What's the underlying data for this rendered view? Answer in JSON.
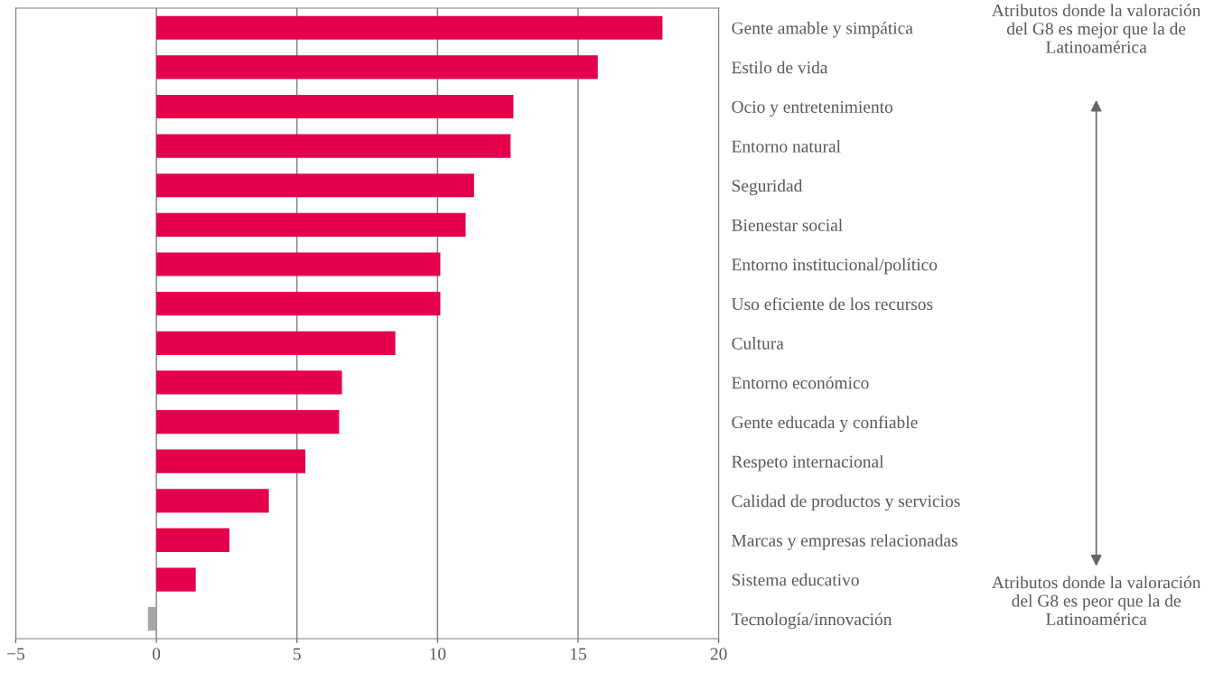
{
  "chart_data": {
    "type": "bar",
    "orientation": "horizontal",
    "categories": [
      "Gente amable y simpática",
      "Estilo de vida",
      "Ocio y entretenimiento",
      "Entorno natural",
      "Seguridad",
      "Bienestar social",
      "Entorno institucional/político",
      "Uso eficiente de los recursos",
      "Cultura",
      "Entorno económico",
      "Gente educada y confiable",
      "Respeto internacional",
      "Calidad de productos y servicios",
      "Marcas y empresas relacionadas",
      "Sistema educativo",
      "Tecnología/innovación"
    ],
    "values": [
      18.0,
      15.7,
      12.7,
      12.6,
      11.3,
      11.0,
      10.1,
      10.1,
      8.5,
      6.6,
      6.5,
      5.3,
      4.0,
      2.6,
      1.4,
      -0.3
    ],
    "colors": [
      "#e4004b",
      "#e4004b",
      "#e4004b",
      "#e4004b",
      "#e4004b",
      "#e4004b",
      "#e4004b",
      "#e4004b",
      "#e4004b",
      "#e4004b",
      "#e4004b",
      "#e4004b",
      "#e4004b",
      "#e4004b",
      "#e4004b",
      "#a6a6a6"
    ],
    "xlim": [
      -5,
      20
    ],
    "xticks": [
      {
        "value": -5,
        "label": "−5"
      },
      0,
      5,
      10,
      15,
      20
    ],
    "grid": "x",
    "annotations": [
      "Atributos donde la valoración del G8 es mejor que la de Latinoamérica",
      "Atributos donde la valoración del G8 es peor que la de Latinoamérica"
    ]
  }
}
